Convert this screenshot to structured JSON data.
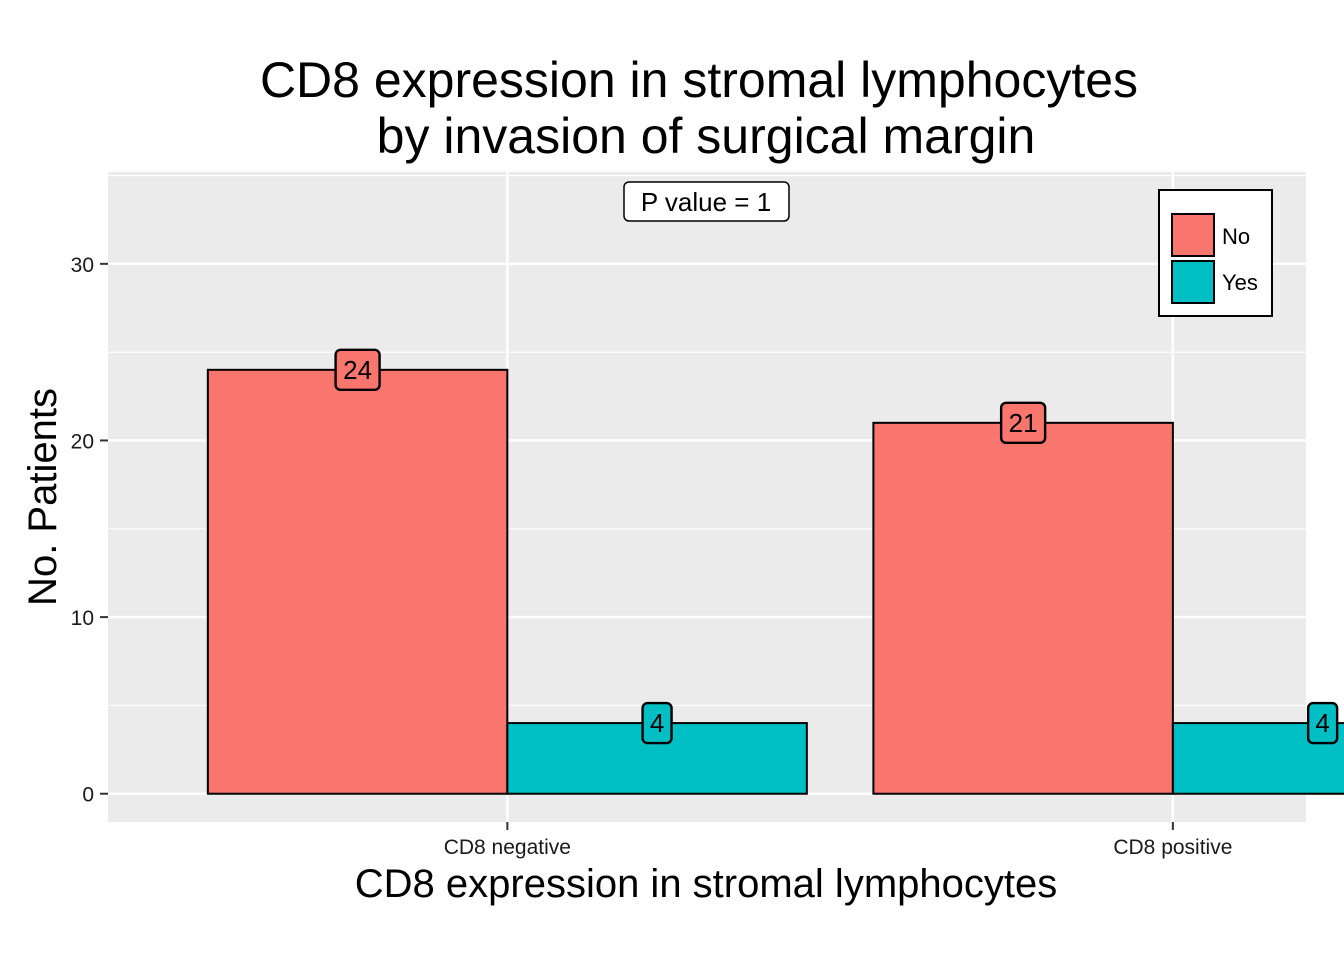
{
  "chart_data": {
    "type": "bar",
    "title": [
      "CD8 expression in stromal lymphocytes",
      "by invasion of surgical margin"
    ],
    "xlabel": "CD8 expression in stromal lymphocytes",
    "ylabel": "No. Patients",
    "categories": [
      "CD8 negative",
      "CD8 positive"
    ],
    "series": [
      {
        "name": "No",
        "values": [
          24,
          21
        ],
        "color": "#F8766D"
      },
      {
        "name": "Yes",
        "values": [
          4,
          4
        ],
        "color": "#00BFC4"
      }
    ],
    "data_labels": [
      [
        "24",
        "21"
      ],
      [
        "4",
        "4"
      ]
    ],
    "ylim": [
      -1.6,
      35.2
    ],
    "yticks": [
      0,
      10,
      20,
      30
    ],
    "ytick_labels": [
      "0",
      "10",
      "20",
      "30"
    ],
    "annotation": "P value = 1",
    "legend_position": "top-right",
    "grid": true,
    "panel_color": "#EBEBEB"
  }
}
